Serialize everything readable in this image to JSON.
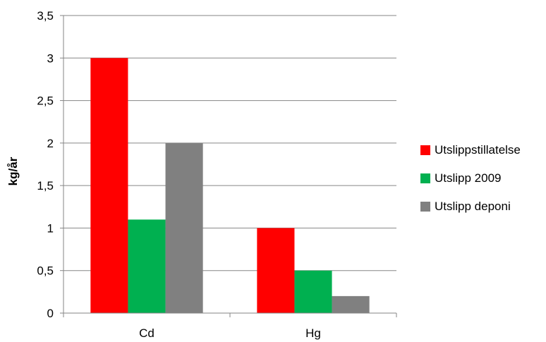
{
  "chart_data": {
    "type": "bar",
    "categories": [
      "Cd",
      "Hg"
    ],
    "series": [
      {
        "name": "Utslippstillatelse",
        "values": [
          3.0,
          1.0
        ],
        "color": "#ff0000"
      },
      {
        "name": "Utslipp 2009",
        "values": [
          1.1,
          0.5
        ],
        "color": "#00b050"
      },
      {
        "name": "Utslipp deponi",
        "values": [
          2.0,
          0.2
        ],
        "color": "#808080"
      }
    ],
    "ylabel": "kg/år",
    "xlabel": "",
    "ylim": [
      0,
      3.5
    ],
    "yticks": [
      "0",
      "0,5",
      "1",
      "1,5",
      "2",
      "2,5",
      "3",
      "3,5"
    ],
    "grid": true,
    "legend_position": "right"
  }
}
